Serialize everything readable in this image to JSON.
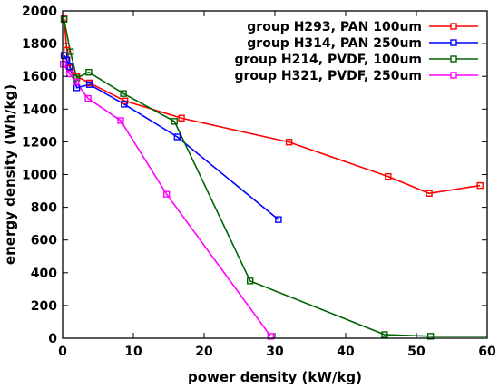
{
  "chart_data": {
    "type": "line",
    "title": "",
    "xlabel": "power density (kW/kg)",
    "ylabel": "energy density (Wh/kg)",
    "xlim": [
      0,
      60
    ],
    "ylim": [
      0,
      2000
    ],
    "xticks": [
      0,
      10,
      20,
      30,
      40,
      50,
      60
    ],
    "yticks": [
      0,
      200,
      400,
      600,
      800,
      1000,
      1200,
      1400,
      1600,
      1800,
      2000
    ],
    "grid": false,
    "legend_position": "top-right",
    "series": [
      {
        "name": "group H293, PAN 100um",
        "color": "#ff0000",
        "points": [
          [
            0.2,
            1955
          ],
          [
            0.6,
            1760
          ],
          [
            1.1,
            1650
          ],
          [
            2.0,
            1600
          ],
          [
            3.8,
            1560
          ],
          [
            8.8,
            1450
          ],
          [
            16.8,
            1345
          ],
          [
            32.0,
            1198
          ],
          [
            46.0,
            988
          ],
          [
            51.8,
            885
          ],
          [
            59.0,
            933
          ]
        ]
      },
      {
        "name": "group H314, PAN 250um",
        "color": "#0000ff",
        "points": [
          [
            0.2,
            1728
          ],
          [
            0.6,
            1700
          ],
          [
            1.0,
            1658
          ],
          [
            2.0,
            1530
          ],
          [
            3.8,
            1550
          ],
          [
            8.7,
            1430
          ],
          [
            16.2,
            1230
          ],
          [
            30.5,
            725
          ]
        ]
      },
      {
        "name": "group H214, PVDF, 100um",
        "color": "#006400",
        "points": [
          [
            0.2,
            1948
          ],
          [
            1.1,
            1750
          ],
          [
            2.0,
            1590
          ],
          [
            3.7,
            1625
          ],
          [
            8.6,
            1495
          ],
          [
            15.8,
            1325
          ],
          [
            26.5,
            350
          ],
          [
            45.5,
            22
          ],
          [
            52.0,
            12
          ],
          [
            60,
            12
          ]
        ]
      },
      {
        "name": "group H321, PVDF, 250um",
        "color": "#ff00ff",
        "points": [
          [
            0.1,
            1675
          ],
          [
            1.0,
            1615
          ],
          [
            1.9,
            1565
          ],
          [
            3.6,
            1465
          ],
          [
            8.2,
            1330
          ],
          [
            14.7,
            880
          ],
          [
            29.4,
            12
          ]
        ]
      }
    ]
  }
}
